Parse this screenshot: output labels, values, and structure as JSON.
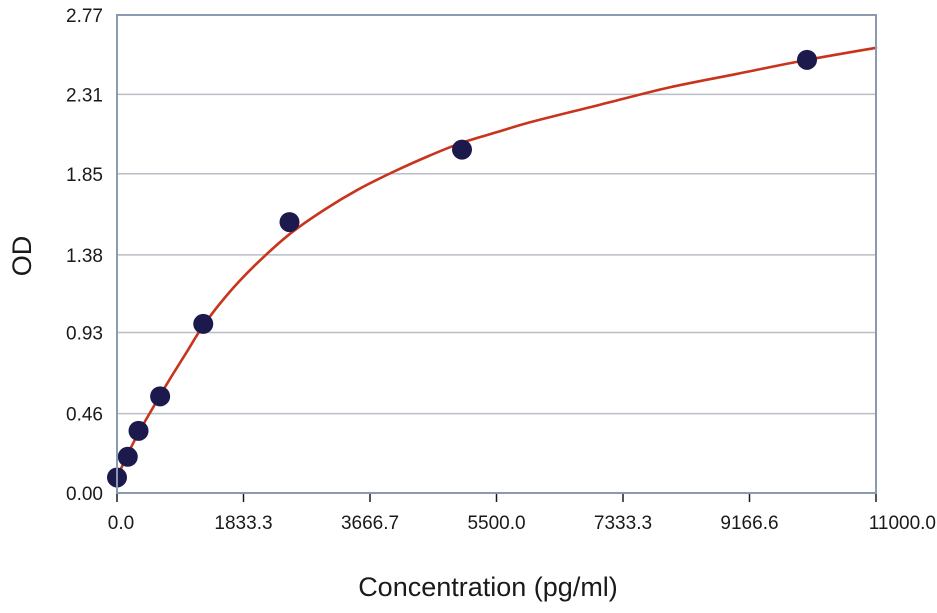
{
  "chart_data": {
    "type": "scatter",
    "xlabel": "Concentration (pg/ml)",
    "ylabel": "OD",
    "xlim": [
      0,
      11000
    ],
    "ylim": [
      0,
      2.77
    ],
    "x_ticks": [
      0,
      1833.3,
      3666.7,
      5500.0,
      7333.3,
      9166.6,
      11000.0
    ],
    "x_tick_labels": [
      "0.0",
      "1833.3",
      "3666.7",
      "5500.0",
      "7333.3",
      "9166.6",
      "11000.0"
    ],
    "y_ticks": [
      0.0,
      0.46,
      0.93,
      1.38,
      1.85,
      2.31,
      2.77
    ],
    "y_tick_labels": [
      "0.00",
      "0.46",
      "0.93",
      "1.38",
      "1.85",
      "2.31",
      "2.77"
    ],
    "grid": "horizontal",
    "legend": "none",
    "series": [
      {
        "kind": "points",
        "color": "#1c1a4d",
        "points": [
          {
            "x": 0,
            "y": 0.09
          },
          {
            "x": 156,
            "y": 0.21
          },
          {
            "x": 312,
            "y": 0.36
          },
          {
            "x": 625,
            "y": 0.56
          },
          {
            "x": 1250,
            "y": 0.98
          },
          {
            "x": 2500,
            "y": 1.57
          },
          {
            "x": 5000,
            "y": 1.99
          },
          {
            "x": 10000,
            "y": 2.51
          }
        ]
      },
      {
        "kind": "fit-curve",
        "color": "#c8341c",
        "points": [
          {
            "x": 0,
            "y": 0.09
          },
          {
            "x": 150,
            "y": 0.22
          },
          {
            "x": 300,
            "y": 0.34
          },
          {
            "x": 500,
            "y": 0.48
          },
          {
            "x": 750,
            "y": 0.65
          },
          {
            "x": 1000,
            "y": 0.81
          },
          {
            "x": 1250,
            "y": 0.97
          },
          {
            "x": 1600,
            "y": 1.15
          },
          {
            "x": 2000,
            "y": 1.32
          },
          {
            "x": 2500,
            "y": 1.5
          },
          {
            "x": 3000,
            "y": 1.64
          },
          {
            "x": 3500,
            "y": 1.76
          },
          {
            "x": 4000,
            "y": 1.86
          },
          {
            "x": 4500,
            "y": 1.95
          },
          {
            "x": 5000,
            "y": 2.03
          },
          {
            "x": 5500,
            "y": 2.09
          },
          {
            "x": 6000,
            "y": 2.15
          },
          {
            "x": 7000,
            "y": 2.25
          },
          {
            "x": 8000,
            "y": 2.35
          },
          {
            "x": 9000,
            "y": 2.43
          },
          {
            "x": 10000,
            "y": 2.51
          },
          {
            "x": 11000,
            "y": 2.58
          }
        ]
      }
    ]
  },
  "colors": {
    "frame": "#8a9bb0",
    "grid": "#b9bec6",
    "tick": "#1a1a1a"
  }
}
